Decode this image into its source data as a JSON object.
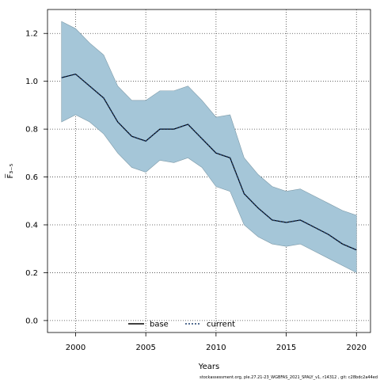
{
  "chart_data": {
    "type": "line",
    "xlabel": "Years",
    "ylabel": "F̅₃₋₅",
    "xlim": [
      1998,
      2021
    ],
    "ylim": [
      -0.05,
      1.3
    ],
    "x_ticks": [
      2000,
      2005,
      2010,
      2015,
      2020
    ],
    "y_ticks": [
      0.0,
      0.2,
      0.4,
      0.6,
      0.8,
      1.0,
      1.2
    ],
    "x_tick_labels": [
      "2000",
      "2005",
      "2010",
      "2015",
      "2020"
    ],
    "y_tick_labels": [
      "0.0",
      "0.2",
      "0.4",
      "0.6",
      "0.8",
      "1.0",
      "1.2"
    ],
    "grid": true,
    "legend_position": "bottom-center",
    "x": [
      1999,
      2000,
      2001,
      2002,
      2003,
      2004,
      2005,
      2006,
      2007,
      2008,
      2009,
      2010,
      2011,
      2012,
      2013,
      2014,
      2015,
      2016,
      2017,
      2018,
      2019,
      2020
    ],
    "band": {
      "color": "#a5c6d8",
      "edge_color": "#7d9aa8",
      "upper": [
        1.25,
        1.22,
        1.16,
        1.11,
        0.98,
        0.92,
        0.92,
        0.96,
        0.96,
        0.98,
        0.92,
        0.85,
        0.86,
        0.68,
        0.61,
        0.56,
        0.54,
        0.55,
        0.52,
        0.49,
        0.46,
        0.44
      ],
      "lower": [
        0.83,
        0.86,
        0.83,
        0.78,
        0.7,
        0.64,
        0.62,
        0.67,
        0.66,
        0.68,
        0.64,
        0.56,
        0.54,
        0.4,
        0.35,
        0.32,
        0.31,
        0.32,
        0.29,
        0.26,
        0.23,
        0.2
      ]
    },
    "series": [
      {
        "name": "base",
        "style": "solid",
        "color": "#000000",
        "values": [
          1.015,
          1.03,
          0.98,
          0.93,
          0.83,
          0.77,
          0.75,
          0.8,
          0.8,
          0.82,
          0.76,
          0.7,
          0.68,
          0.53,
          0.47,
          0.42,
          0.41,
          0.42,
          0.39,
          0.36,
          0.32,
          0.295
        ]
      },
      {
        "name": "current",
        "style": "dotted",
        "color": "#1f3f6e",
        "values": [
          1.015,
          1.03,
          0.98,
          0.93,
          0.83,
          0.77,
          0.75,
          0.8,
          0.8,
          0.82,
          0.76,
          0.7,
          0.68,
          0.53,
          0.47,
          0.42,
          0.41,
          0.42,
          0.39,
          0.36,
          0.32,
          0.295
        ]
      }
    ],
    "legend": [
      {
        "label": "base",
        "style": "solid"
      },
      {
        "label": "current",
        "style": "dotted"
      }
    ],
    "footnote": "stockassessment.org, ple.27.21-23_WGBFAS_2021_SPALY_v1, r14312 , git: c28bdc2a44ed"
  }
}
